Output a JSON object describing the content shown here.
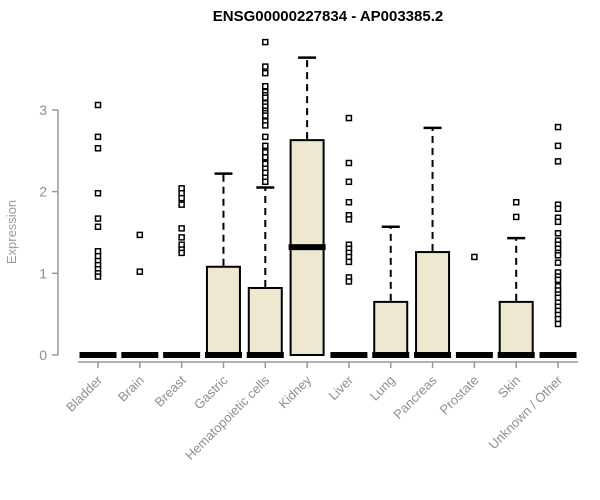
{
  "title": "ENSG00000227834 - AP003385.2",
  "chart_data": {
    "type": "boxplot",
    "title": "ENSG00000227834 - AP003385.2",
    "xlabel": "",
    "ylabel": "Expression",
    "yticks": [
      0,
      1,
      2,
      3
    ],
    "ylim": [
      0,
      3.95
    ],
    "grid": false,
    "legend": "none",
    "colors": {
      "box_fill": "#EDE8CF",
      "box_stroke": "#000000",
      "median": "#000000",
      "whisker": "#000000",
      "outlier_stroke": "#000000",
      "outlier_fill": "#ffffff",
      "axis": "#999999",
      "tick_text": "#8f8f8f",
      "title_text": "#000000"
    },
    "categories": [
      "Bladder",
      "Brain",
      "Breast",
      "Gastric",
      "Hematopoietic cells",
      "Kidney",
      "Liver",
      "Lung",
      "Pancreas",
      "Prostate",
      "Skin",
      "Unknown / Other"
    ],
    "series": [
      {
        "label": "Bladder",
        "q1": 0,
        "median": 0,
        "q3": 0,
        "whisker_low": 0,
        "whisker_high": 0,
        "outliers": [
          3.06,
          2.67,
          2.53,
          1.98,
          1.67,
          1.57,
          1.27,
          1.21,
          1.15,
          1.1,
          1.05,
          1.0,
          0.96
        ]
      },
      {
        "label": "Brain",
        "q1": 0,
        "median": 0,
        "q3": 0,
        "whisker_low": 0,
        "whisker_high": 0,
        "outliers": [
          1.47,
          1.02
        ]
      },
      {
        "label": "Breast",
        "q1": 0,
        "median": 0,
        "q3": 0,
        "whisker_low": 0,
        "whisker_high": 0,
        "outliers": [
          2.04,
          1.98,
          1.92,
          1.84,
          1.55,
          1.44,
          1.35,
          1.29,
          1.25
        ]
      },
      {
        "label": "Gastric",
        "q1": 0,
        "median": 0,
        "q3": 1.08,
        "whisker_low": 0,
        "whisker_high": 2.22,
        "outliers": []
      },
      {
        "label": "Hematopoietic cells",
        "q1": 0,
        "median": 0,
        "q3": 0.82,
        "whisker_low": 0,
        "whisker_high": 2.05,
        "outliers": [
          3.83,
          3.53,
          3.45,
          3.29,
          3.22,
          3.18,
          3.15,
          3.08,
          3.04,
          2.99,
          2.96,
          2.93,
          2.86,
          2.81,
          2.67,
          2.56,
          2.48,
          2.42,
          2.34,
          2.28,
          2.23,
          2.17,
          2.12
        ]
      },
      {
        "label": "Kidney",
        "q1": 0,
        "median": 1.32,
        "q3": 2.63,
        "whisker_low": 0,
        "whisker_high": 3.64,
        "outliers": []
      },
      {
        "label": "Liver",
        "q1": 0,
        "median": 0,
        "q3": 0,
        "whisker_low": 0,
        "whisker_high": 0,
        "outliers": [
          2.9,
          2.35,
          2.12,
          1.87,
          1.71,
          1.66,
          1.35,
          1.3,
          1.25,
          1.2,
          1.14,
          0.95,
          0.9
        ]
      },
      {
        "label": "Lung",
        "q1": 0,
        "median": 0,
        "q3": 0.65,
        "whisker_low": 0,
        "whisker_high": 1.57,
        "outliers": []
      },
      {
        "label": "Pancreas",
        "q1": 0,
        "median": 0,
        "q3": 1.26,
        "whisker_low": 0,
        "whisker_high": 2.78,
        "outliers": []
      },
      {
        "label": "Prostate",
        "q1": 0,
        "median": 0,
        "q3": 0,
        "whisker_low": 0,
        "whisker_high": 0,
        "outliers": [
          1.2
        ]
      },
      {
        "label": "Skin",
        "q1": 0,
        "median": 0,
        "q3": 0.65,
        "whisker_low": 0,
        "whisker_high": 1.43,
        "outliers": [
          1.87,
          1.69
        ]
      },
      {
        "label": "Unknown / Other",
        "q1": 0,
        "median": 0,
        "q3": 0,
        "whisker_low": 0,
        "whisker_high": 0,
        "outliers": [
          2.79,
          2.56,
          2.37,
          1.84,
          1.79,
          1.68,
          1.63,
          1.49,
          1.4,
          1.35,
          1.3,
          1.25,
          1.22,
          1.13,
          1.01,
          0.96,
          0.92,
          0.84,
          0.79,
          0.74,
          0.7,
          0.64,
          0.59,
          0.54,
          0.49,
          0.44,
          0.38
        ]
      }
    ]
  }
}
